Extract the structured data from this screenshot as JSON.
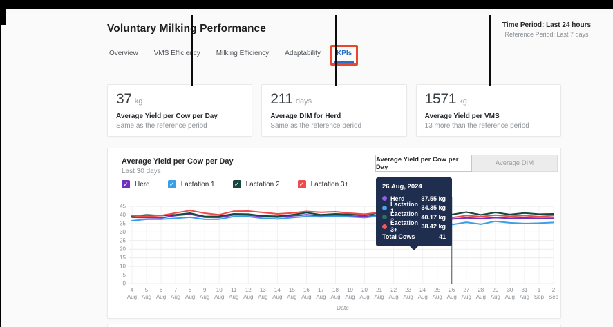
{
  "page": {
    "title": "Voluntary Milking Performance",
    "time_period": "Time Period: Last 24 hours",
    "reference_period": "Reference Period: Last 7 days"
  },
  "tabs": [
    {
      "label": "Overview",
      "selected": false
    },
    {
      "label": "VMS Efficiency",
      "selected": false
    },
    {
      "label": "Milking Efficiency",
      "selected": false
    },
    {
      "label": "Adaptability",
      "selected": false
    },
    {
      "label": "KPIs",
      "selected": true,
      "annotated": true
    }
  ],
  "kpi_cards": [
    {
      "value": "37",
      "unit": "kg",
      "label": "Average Yield per Cow per Day",
      "comparison": "Same as the reference period"
    },
    {
      "value": "211",
      "unit": "days",
      "label": "Average DIM for Herd",
      "comparison": "Same as the reference period"
    },
    {
      "value": "1571",
      "unit": "kg",
      "label": "Average Yield per VMS",
      "comparison": "13 more than the reference period"
    }
  ],
  "chart_panel": {
    "title": "Average Yield per Cow per Day",
    "subtitle": "Last 30 days",
    "toggle": [
      {
        "label": "Average Yield per Cow per Day",
        "selected": true
      },
      {
        "label": "Average DIM",
        "selected": false
      }
    ],
    "legend": [
      {
        "label": "Herd",
        "color": "#7130bd"
      },
      {
        "label": "Lactation 1",
        "color": "#3b9fe8"
      },
      {
        "label": "Lactation 2",
        "color": "#16463e"
      },
      {
        "label": "Lactation 3+",
        "color": "#ee4c4c"
      }
    ],
    "check_glyph": "✓"
  },
  "tooltip": {
    "title": "26 Aug, 2024",
    "rows": [
      {
        "label": "Herd",
        "value": "37.55 kg",
        "color": "#8f5fe8"
      },
      {
        "label": "Lactation 1",
        "value": "34.35 kg",
        "color": "#4aa3f0"
      },
      {
        "label": "Lactation 2",
        "value": "40.17 kg",
        "color": "#2e6e62"
      },
      {
        "label": "Lactation 3+",
        "value": "38.42 kg",
        "color": "#e85c5c"
      }
    ],
    "total_label": "Total Cows",
    "total_value": "41"
  },
  "chart_data": {
    "type": "line",
    "title": "Average Yield per Cow per Day",
    "xlabel": "Date",
    "ylabel": "",
    "ylim": [
      0,
      45
    ],
    "yticks": [
      0,
      5,
      10,
      15,
      20,
      25,
      30,
      35,
      40,
      45
    ],
    "grid": true,
    "legend_position": "top-left",
    "highlight_index": 22,
    "highlight_x": "26 Aug",
    "x": [
      "4 Aug",
      "5 Aug",
      "6 Aug",
      "7 Aug",
      "8 Aug",
      "9 Aug",
      "10 Aug",
      "11 Aug",
      "12 Aug",
      "13 Aug",
      "14 Aug",
      "15 Aug",
      "16 Aug",
      "17 Aug",
      "18 Aug",
      "19 Aug",
      "20 Aug",
      "21 Aug",
      "22 Aug",
      "23 Aug",
      "24 Aug",
      "25 Aug",
      "26 Aug",
      "27 Aug",
      "28 Aug",
      "29 Aug",
      "30 Aug",
      "31 Aug",
      "1 Sep",
      "2 Sep"
    ],
    "series": [
      {
        "name": "Herd",
        "color": "#7130bd",
        "values": [
          38.6,
          38.4,
          38.3,
          39.6,
          40.4,
          38.6,
          38.5,
          40.0,
          39.9,
          39.0,
          38.7,
          39.4,
          40.1,
          39.5,
          39.7,
          39.4,
          39.0,
          39.9,
          38.6,
          36.6,
          37.2,
          38.6,
          37.55,
          38.3,
          37.9,
          38.4,
          38.0,
          38.2,
          38.0,
          38.1
        ]
      },
      {
        "name": "Lactation 1",
        "color": "#3b9fe8",
        "values": [
          36.6,
          37.4,
          37.5,
          38.0,
          38.6,
          37.4,
          37.5,
          39.0,
          39.0,
          38.0,
          37.6,
          38.4,
          39.1,
          38.9,
          39.2,
          38.9,
          38.4,
          39.4,
          37.2,
          35.6,
          36.2,
          36.6,
          34.35,
          35.7,
          34.6,
          36.3,
          35.4,
          35.0,
          35.2,
          35.6
        ]
      },
      {
        "name": "Lactation 2",
        "color": "#16463e",
        "values": [
          39.2,
          40.0,
          39.6,
          40.1,
          41.0,
          39.1,
          39.2,
          40.6,
          40.4,
          39.4,
          39.2,
          40.0,
          41.3,
          40.1,
          40.6,
          40.3,
          39.8,
          41.2,
          39.4,
          36.2,
          36.8,
          39.6,
          40.17,
          41.6,
          40.0,
          41.4,
          40.2,
          41.1,
          40.4,
          40.6
        ]
      },
      {
        "name": "Lactation 3+",
        "color": "#ee4c4c",
        "values": [
          39.6,
          39.1,
          39.6,
          41.1,
          42.5,
          41.0,
          40.1,
          42.1,
          42.2,
          41.4,
          40.6,
          41.1,
          42.0,
          41.5,
          41.8,
          41.0,
          40.4,
          41.4,
          40.0,
          38.6,
          39.2,
          39.9,
          38.42,
          39.6,
          39.0,
          39.9,
          39.2,
          39.6,
          39.0,
          39.6
        ]
      }
    ]
  }
}
